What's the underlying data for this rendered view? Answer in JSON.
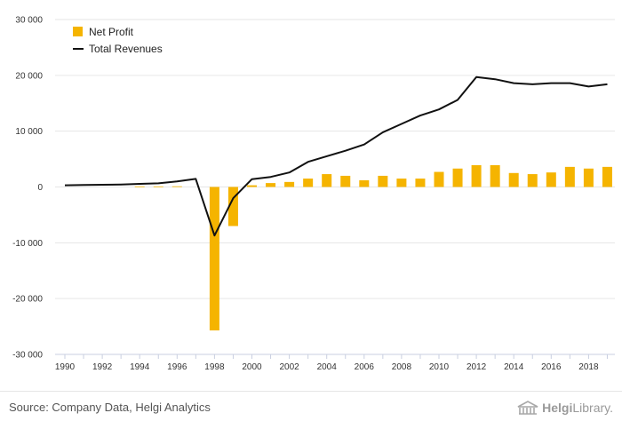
{
  "chart_data": {
    "type": "bar",
    "title": "",
    "xlabel": "",
    "ylabel": "",
    "ylim": [
      -30000,
      30000
    ],
    "y_ticks": [
      -30000,
      -20000,
      -10000,
      0,
      10000,
      20000,
      30000
    ],
    "y_tick_labels": [
      "-30 000",
      "-20 000",
      "-10 000",
      "0",
      "10 000",
      "20 000",
      "30 000"
    ],
    "x_tick_labels": [
      "1990",
      "1992",
      "1994",
      "1996",
      "1998",
      "2000",
      "2002",
      "2004",
      "2006",
      "2008",
      "2010",
      "2012",
      "2014",
      "2016",
      "2018"
    ],
    "categories": [
      "1990",
      "1991",
      "1992",
      "1993",
      "1994",
      "1995",
      "1996",
      "1997",
      "1998",
      "1999",
      "2000",
      "2001",
      "2002",
      "2003",
      "2004",
      "2005",
      "2006",
      "2007",
      "2008",
      "2009",
      "2010",
      "2011",
      "2012",
      "2013",
      "2014",
      "2015",
      "2016",
      "2017",
      "2018",
      "2019"
    ],
    "series": [
      {
        "name": "Net Profit",
        "type": "bar",
        "color": "#f5b400",
        "values": [
          0,
          0,
          0,
          0,
          100,
          100,
          120,
          0,
          -25700,
          -7000,
          300,
          700,
          900,
          1500,
          2300,
          2000,
          1200,
          2000,
          1500,
          1500,
          2700,
          3300,
          3900,
          3900,
          2500,
          2300,
          2600,
          3600,
          3300,
          3600
        ]
      },
      {
        "name": "Total Revenues",
        "type": "line",
        "color": "#111111",
        "values": [
          300,
          350,
          400,
          450,
          550,
          650,
          1000,
          1450,
          -8700,
          -2000,
          1400,
          1800,
          2600,
          4500,
          5500,
          6500,
          7600,
          9800,
          11300,
          12800,
          13900,
          15600,
          19700,
          19300,
          18600,
          18400,
          18600,
          18600,
          18000,
          18400
        ]
      }
    ],
    "legend": {
      "position": "top-left",
      "items": [
        "Net Profit",
        "Total Revenues"
      ]
    },
    "grid": true
  },
  "footer": {
    "source": "Source: Company Data, Helgi Analytics",
    "brand_prefix": "Helgi",
    "brand_suffix": "Library."
  }
}
